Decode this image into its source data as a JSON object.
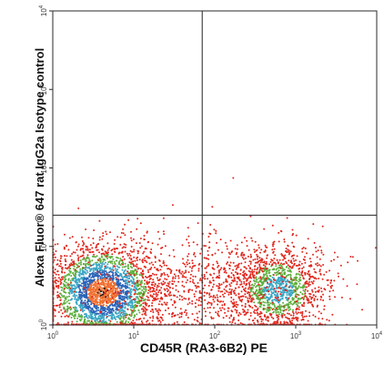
{
  "chart_data": {
    "type": "scatter",
    "title": "",
    "xlabel": "CD45R (RA3-6B2) PE",
    "ylabel": "Alexa Fluor® 647 rat IgG2a Isotype control",
    "xscale": "log",
    "yscale": "log",
    "xlim": [
      1,
      10000
    ],
    "ylim": [
      1,
      10000
    ],
    "xticks": [
      {
        "value": 1,
        "base": "10",
        "exp": "0"
      },
      {
        "value": 10,
        "base": "10",
        "exp": "1"
      },
      {
        "value": 100,
        "base": "10",
        "exp": "2"
      },
      {
        "value": 1000,
        "base": "10",
        "exp": "3"
      },
      {
        "value": 10000,
        "base": "10",
        "exp": "4"
      }
    ],
    "yticks": [
      {
        "value": 1,
        "base": "10",
        "exp": "0"
      },
      {
        "value": 10,
        "base": "10",
        "exp": "1"
      },
      {
        "value": 100,
        "base": "10",
        "exp": "2"
      },
      {
        "value": 1000,
        "base": "10",
        "exp": "3"
      },
      {
        "value": 10000,
        "base": "10",
        "exp": "4"
      }
    ],
    "quadrant_gates": {
      "x": 70,
      "y": 25
    },
    "grid": false,
    "legend": "none",
    "density_colors": [
      "#e0281e",
      "#5cae3c",
      "#3aa6c4",
      "#2a64b8",
      "#f07030",
      "#1a1a1a"
    ],
    "populations": [
      {
        "center_x": 4.2,
        "center_y": 2.6,
        "spread_x_decades": 0.33,
        "spread_y_decades": 0.3,
        "density": "high"
      },
      {
        "center_x": 600,
        "center_y": 2.8,
        "spread_x_decades": 0.3,
        "spread_y_decades": 0.28,
        "density": "medium"
      },
      {
        "center_x": 60,
        "center_y": 3.0,
        "spread_x_decades": 0.7,
        "spread_y_decades": 0.32,
        "density": "low"
      }
    ]
  }
}
